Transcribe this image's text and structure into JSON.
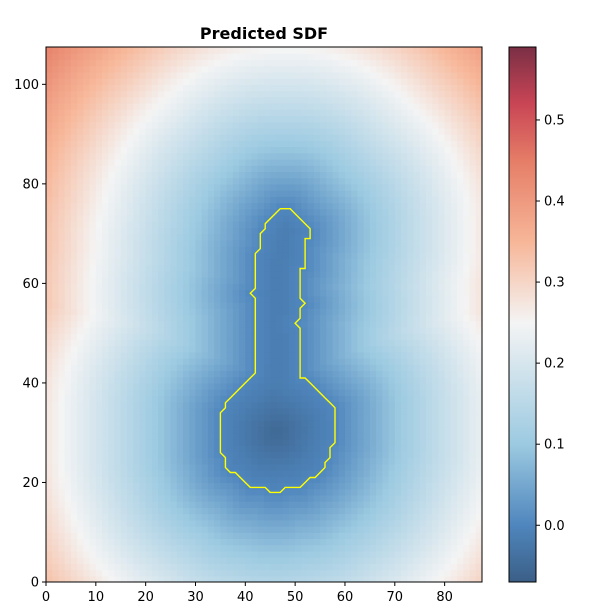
{
  "chart_data": {
    "type": "heatmap",
    "title": "Predicted SDF",
    "xlabel": "",
    "ylabel": "",
    "xlim": [
      0,
      87.5
    ],
    "ylim": [
      0,
      107.5
    ],
    "x_ticks": [
      "0",
      "10",
      "20",
      "30",
      "40",
      "50",
      "60",
      "70",
      "80"
    ],
    "y_ticks": [
      "0",
      "20",
      "40",
      "60",
      "80",
      "100"
    ],
    "grid": false,
    "colormap": "RdBu_r",
    "colorbar": {
      "range": [
        -0.07,
        0.59
      ],
      "ticks": [
        "0.0",
        "0.1",
        "0.2",
        "0.3",
        "0.4",
        "0.5"
      ],
      "tick_values": [
        0.0,
        0.1,
        0.2,
        0.3,
        0.4,
        0.5
      ]
    },
    "zero_contour": {
      "color": "#ffff00",
      "points": [
        [
          47,
          75
        ],
        [
          49,
          75
        ],
        [
          50,
          74
        ],
        [
          52,
          72
        ],
        [
          53,
          71
        ],
        [
          53,
          69
        ],
        [
          52,
          69
        ],
        [
          52,
          63
        ],
        [
          51,
          63
        ],
        [
          51,
          58
        ],
        [
          51,
          57
        ],
        [
          52,
          56
        ],
        [
          51,
          55
        ],
        [
          51,
          53
        ],
        [
          50,
          52
        ],
        [
          51,
          51
        ],
        [
          51,
          41
        ],
        [
          52,
          41
        ],
        [
          53,
          40
        ],
        [
          56,
          37
        ],
        [
          57,
          36
        ],
        [
          58,
          35
        ],
        [
          58,
          28
        ],
        [
          57,
          27
        ],
        [
          57,
          25
        ],
        [
          56,
          24
        ],
        [
          56,
          23
        ],
        [
          55,
          22
        ],
        [
          54,
          21
        ],
        [
          53,
          21
        ],
        [
          52,
          20
        ],
        [
          51,
          19
        ],
        [
          48,
          19
        ],
        [
          47,
          18
        ],
        [
          45,
          18
        ],
        [
          44,
          19
        ],
        [
          41,
          19
        ],
        [
          40,
          20
        ],
        [
          39,
          21
        ],
        [
          38,
          22
        ],
        [
          37,
          22
        ],
        [
          36,
          23
        ],
        [
          36,
          25
        ],
        [
          35,
          26
        ],
        [
          35,
          34
        ],
        [
          36,
          35
        ],
        [
          36,
          36
        ],
        [
          37,
          37
        ],
        [
          40,
          40
        ],
        [
          42,
          42
        ],
        [
          42,
          57
        ],
        [
          41,
          58
        ],
        [
          42,
          59
        ],
        [
          42,
          66
        ],
        [
          43,
          67
        ],
        [
          43,
          70
        ],
        [
          44,
          71
        ],
        [
          44,
          72
        ],
        [
          46,
          74
        ],
        [
          47,
          75
        ]
      ]
    },
    "colors": {
      "min": "#3b5f87",
      "zero": "#4f86bd",
      "mid": "#f4f4f4",
      "max": "#7a2f45",
      "contour": "#ffff00"
    }
  }
}
